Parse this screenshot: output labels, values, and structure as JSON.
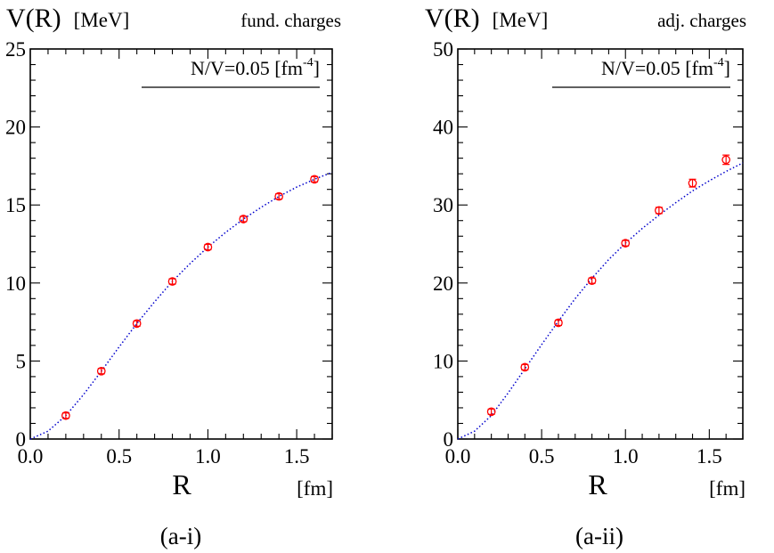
{
  "chart_data": [
    {
      "type": "scatter",
      "panel_label": "(a-i)",
      "ylabel": "V(R)",
      "ylabel_unit": "[MeV]",
      "xlabel": "R",
      "xlabel_unit": "[fm]",
      "corner_title": "fund. charges",
      "legend_text": "N/V=0.05 [fm",
      "legend_sup": "-4",
      "legend_close": "]",
      "legend_position": "top-right",
      "xlim": [
        0,
        1.7
      ],
      "ylim": [
        0,
        25
      ],
      "xticks": [
        0.0,
        0.5,
        1.0,
        1.5
      ],
      "xtick_labels": [
        "0.0",
        "0.5",
        "1.0",
        "1.5"
      ],
      "yticks": [
        0,
        5,
        10,
        15,
        20,
        25
      ],
      "ytick_labels": [
        "0",
        "5",
        "10",
        "15",
        "20",
        "25"
      ],
      "grid": false,
      "series": [
        {
          "kind": "points",
          "color": "#ff0000",
          "x": [
            0.2,
            0.4,
            0.6,
            0.8,
            1.0,
            1.2,
            1.4,
            1.6
          ],
          "y": [
            1.5,
            4.35,
            7.4,
            10.1,
            12.3,
            14.1,
            15.55,
            16.65
          ],
          "yerr": [
            0.12,
            0.12,
            0.12,
            0.12,
            0.12,
            0.12,
            0.12,
            0.12
          ]
        },
        {
          "kind": "fit-curve",
          "color": "#0000cc",
          "x": [
            0.0,
            0.1,
            0.2,
            0.3,
            0.4,
            0.5,
            0.6,
            0.7,
            0.8,
            0.9,
            1.0,
            1.1,
            1.2,
            1.3,
            1.4,
            1.5,
            1.6,
            1.7
          ],
          "y": [
            0.0,
            0.5,
            1.5,
            2.85,
            4.35,
            5.9,
            7.4,
            8.8,
            10.1,
            11.25,
            12.3,
            13.25,
            14.1,
            14.85,
            15.55,
            16.15,
            16.65,
            17.1
          ]
        }
      ]
    },
    {
      "type": "scatter",
      "panel_label": "(a-ii)",
      "ylabel": "V(R)",
      "ylabel_unit": "[MeV]",
      "xlabel": "R",
      "xlabel_unit": "[fm]",
      "corner_title": "adj. charges",
      "legend_text": "N/V=0.05 [fm",
      "legend_sup": "-4",
      "legend_close": "]",
      "legend_position": "top-right",
      "xlim": [
        0,
        1.7
      ],
      "ylim": [
        0,
        50
      ],
      "xticks": [
        0.0,
        0.5,
        1.0,
        1.5
      ],
      "xtick_labels": [
        "0.0",
        "0.5",
        "1.0",
        "1.5"
      ],
      "yticks": [
        0,
        10,
        20,
        30,
        40,
        50
      ],
      "ytick_labels": [
        "0",
        "10",
        "20",
        "30",
        "40",
        "50"
      ],
      "grid": false,
      "series": [
        {
          "kind": "points",
          "color": "#ff0000",
          "x": [
            0.2,
            0.4,
            0.6,
            0.8,
            1.0,
            1.2,
            1.4,
            1.6
          ],
          "y": [
            3.5,
            9.2,
            14.9,
            20.3,
            25.1,
            29.3,
            32.8,
            35.8
          ],
          "yerr": [
            0.25,
            0.25,
            0.3,
            0.3,
            0.35,
            0.4,
            0.5,
            0.6
          ]
        },
        {
          "kind": "fit-curve",
          "color": "#0000cc",
          "x": [
            0.0,
            0.1,
            0.2,
            0.3,
            0.4,
            0.5,
            0.6,
            0.7,
            0.8,
            0.9,
            1.0,
            1.1,
            1.2,
            1.3,
            1.4,
            1.5,
            1.6,
            1.7
          ],
          "y": [
            0.0,
            1.0,
            3.0,
            5.9,
            9.0,
            12.1,
            15.1,
            18.0,
            20.6,
            23.0,
            25.1,
            27.0,
            28.7,
            30.3,
            31.8,
            33.1,
            34.3,
            35.4
          ]
        }
      ]
    }
  ]
}
